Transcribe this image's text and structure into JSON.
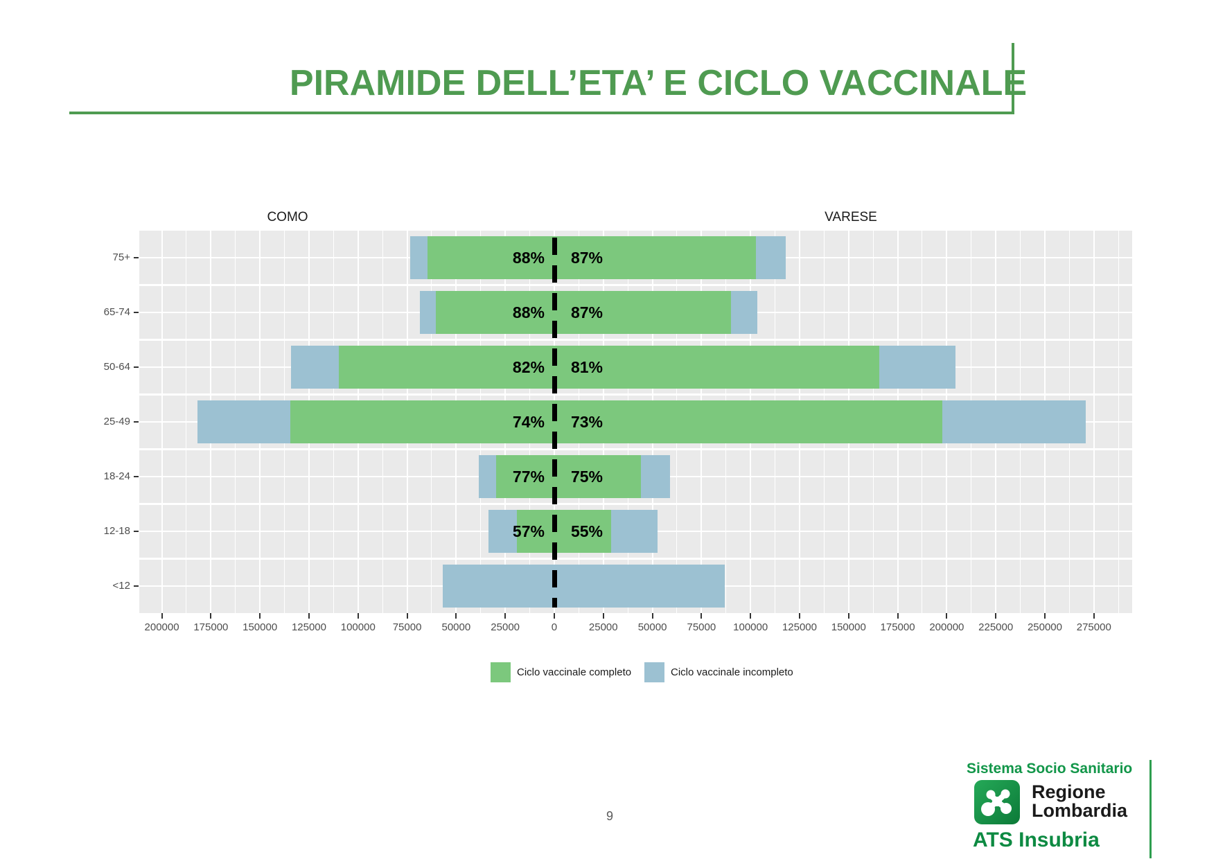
{
  "title": "PIRAMIDE DELL’ETA’ E CICLO VACCINALE",
  "page_number": "9",
  "colors": {
    "title_green": "#4F9B51",
    "complete_green": "#7CC87D",
    "incomplete_blue": "#9CC1D2",
    "panel_gray": "#EAEAEA",
    "axis_text": "#4D4D4D",
    "footer_green": "#129649"
  },
  "chart_data": {
    "type": "bar",
    "variant": "population_pyramid_stacked",
    "title": "PIRAMIDE DELL’ETA’ E CICLO VACCINALE",
    "left_region": "COMO",
    "right_region": "VARESE",
    "categories": [
      "75+",
      "65-74",
      "50-64",
      "25-49",
      "18-24",
      "12-18",
      "<12"
    ],
    "rows": [
      {
        "group": "75+",
        "como": {
          "total": 73500,
          "pct_complete": 88,
          "pct_label": "88%"
        },
        "varese": {
          "total": 118000,
          "pct_complete": 87,
          "pct_label": "87%"
        }
      },
      {
        "group": "65-74",
        "como": {
          "total": 68500,
          "pct_complete": 88,
          "pct_label": "88%"
        },
        "varese": {
          "total": 103500,
          "pct_complete": 87,
          "pct_label": "87%"
        }
      },
      {
        "group": "50-64",
        "como": {
          "total": 134000,
          "pct_complete": 82,
          "pct_label": "82%"
        },
        "varese": {
          "total": 204500,
          "pct_complete": 81,
          "pct_label": "81%"
        }
      },
      {
        "group": "25-49",
        "como": {
          "total": 182000,
          "pct_complete": 74,
          "pct_label": "74%"
        },
        "varese": {
          "total": 271000,
          "pct_complete": 73,
          "pct_label": "73%"
        }
      },
      {
        "group": "18-24",
        "como": {
          "total": 38500,
          "pct_complete": 77,
          "pct_label": "77%"
        },
        "varese": {
          "total": 59000,
          "pct_complete": 75,
          "pct_label": "75%"
        }
      },
      {
        "group": "12-18",
        "como": {
          "total": 33500,
          "pct_complete": 57,
          "pct_label": "57%"
        },
        "varese": {
          "total": 52500,
          "pct_complete": 55,
          "pct_label": "55%"
        }
      },
      {
        "group": "<12",
        "como": {
          "total": 57000,
          "pct_complete": 0,
          "pct_label": ""
        },
        "varese": {
          "total": 87000,
          "pct_complete": 0,
          "pct_label": ""
        }
      }
    ],
    "series": [
      {
        "name": "COMO Ciclo vaccinale completo",
        "values": [
          64680,
          60280,
          109880,
          134680,
          29645,
          19095,
          0
        ]
      },
      {
        "name": "COMO Ciclo vaccinale incompleto",
        "values": [
          8820,
          8220,
          24120,
          47320,
          8855,
          14405,
          57000
        ]
      },
      {
        "name": "VARESE Ciclo vaccinale completo",
        "values": [
          102660,
          90045,
          165645,
          197830,
          44250,
          28875,
          0
        ]
      },
      {
        "name": "VARESE Ciclo vaccinale incompleto",
        "values": [
          15340,
          13455,
          38855,
          73170,
          14750,
          23625,
          87000
        ]
      }
    ],
    "x_axis": {
      "tick_step": 25000,
      "left_max": 200000,
      "right_max": 275000,
      "domain": [
        -211500,
        294500
      ],
      "ticks": [
        {
          "value": -200000,
          "label": "200000"
        },
        {
          "value": -175000,
          "label": "175000"
        },
        {
          "value": -150000,
          "label": "150000"
        },
        {
          "value": -125000,
          "label": "125000"
        },
        {
          "value": -100000,
          "label": "100000"
        },
        {
          "value": -75000,
          "label": "75000"
        },
        {
          "value": -50000,
          "label": "50000"
        },
        {
          "value": -25000,
          "label": "25000"
        },
        {
          "value": 0,
          "label": "0"
        },
        {
          "value": 25000,
          "label": "25000"
        },
        {
          "value": 50000,
          "label": "50000"
        },
        {
          "value": 75000,
          "label": "75000"
        },
        {
          "value": 100000,
          "label": "100000"
        },
        {
          "value": 125000,
          "label": "125000"
        },
        {
          "value": 150000,
          "label": "150000"
        },
        {
          "value": 175000,
          "label": "175000"
        },
        {
          "value": 200000,
          "label": "200000"
        },
        {
          "value": 225000,
          "label": "225000"
        },
        {
          "value": 250000,
          "label": "250000"
        },
        {
          "value": 275000,
          "label": "275000"
        }
      ]
    },
    "legend_position": "bottom",
    "legend": [
      {
        "label": "Ciclo vaccinale completo",
        "color": "#7CC87D"
      },
      {
        "label": "Ciclo vaccinale incompleto",
        "color": "#9CC1D2"
      }
    ]
  },
  "footer": {
    "sistema": "Sistema Socio Sanitario",
    "regione_line1": "Regione",
    "regione_line2": "Lombardia",
    "ats": "ATS Insubria"
  }
}
